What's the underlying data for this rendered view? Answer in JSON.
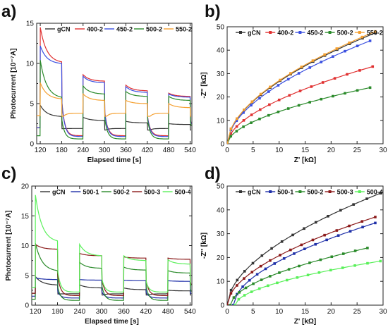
{
  "chart_data": [
    {
      "panel": "a)",
      "type": "line",
      "xlabel": "Elapsed time [s]",
      "ylabel": "Photocurrent [10⁻⁷A]",
      "xlim": [
        110,
        545
      ],
      "ylim": [
        0,
        15
      ],
      "xticks": [
        120,
        180,
        240,
        300,
        360,
        420,
        480,
        540
      ],
      "yticks": [
        0,
        5,
        10,
        15
      ],
      "minor_yticks": [
        2.5,
        7.5,
        12.5
      ],
      "legend": "top",
      "on_times": [
        120,
        240,
        360,
        480
      ],
      "off_times": [
        180,
        300,
        420,
        540
      ],
      "series": [
        {
          "name": "gCN",
          "color": "#333333",
          "dark": 1.9,
          "start": 2.0,
          "peaks": [
            4.8,
            3.3,
            2.8,
            2.5
          ],
          "ends": [
            3.4,
            2.9,
            2.6,
            2.4
          ]
        },
        {
          "name": "400-2",
          "color": "#e03030",
          "dark": 1.0,
          "start": 2.0,
          "peaks": [
            14.5,
            8.6,
            7.3,
            6.3
          ],
          "ends": [
            10.2,
            7.8,
            6.6,
            5.9
          ]
        },
        {
          "name": "450-2",
          "color": "#3a4fe0",
          "dark": 0.9,
          "start": 2.0,
          "peaks": [
            12.2,
            8.4,
            7.1,
            6.2
          ],
          "ends": [
            10.0,
            7.6,
            6.4,
            5.8
          ]
        },
        {
          "name": "500-2",
          "color": "#2a8a2a",
          "dark": 0.6,
          "start": 1.0,
          "peaks": [
            10.4,
            7.2,
            6.5,
            5.9
          ],
          "ends": [
            5.8,
            6.2,
            5.9,
            5.4
          ]
        },
        {
          "name": "550-2",
          "color": "#f5a030",
          "dark": 3.8,
          "start": 3.5,
          "peaks": [
            7.6,
            6.2,
            5.4,
            5.0
          ],
          "ends": [
            5.6,
            5.4,
            5.0,
            4.5
          ]
        }
      ]
    },
    {
      "panel": "b)",
      "type": "scatter",
      "xlabel": "Z' [kΩ]",
      "ylabel": "-Z'' [kΩ]",
      "xlim": [
        0,
        30
      ],
      "ylim": [
        0,
        50
      ],
      "xticks": [
        0,
        5,
        10,
        15,
        20,
        25,
        30
      ],
      "yticks": [
        0,
        10,
        20,
        30,
        40,
        50
      ],
      "legend": "top",
      "series": [
        {
          "name": "gCN",
          "color": "#333333",
          "marker": "square",
          "x0": 0,
          "x_last": 28.6,
          "y_last": 47.5
        },
        {
          "name": "400-2",
          "color": "#e03030",
          "marker": "square",
          "x0": 0,
          "x_last": 28.0,
          "y_last": 33.0
        },
        {
          "name": "450-2",
          "color": "#3a4fe0",
          "marker": "square",
          "x0": 0,
          "x_last": 27.5,
          "y_last": 44.0
        },
        {
          "name": "500-2",
          "color": "#2a8a2a",
          "marker": "square",
          "x0": 0,
          "x_last": 27.5,
          "y_last": 24.0
        },
        {
          "name": "550-2",
          "color": "#f5a030",
          "marker": "square",
          "x0": 0,
          "x_last": 28.5,
          "y_last": 48.0
        }
      ]
    },
    {
      "panel": "c)",
      "type": "line",
      "xlabel": "Elapsed time [s]",
      "ylabel": "Photocurrent [10⁻⁷A]",
      "xlim": [
        110,
        545
      ],
      "ylim": [
        0,
        20
      ],
      "xticks": [
        120,
        180,
        240,
        300,
        360,
        420,
        480,
        540
      ],
      "yticks": [
        0,
        5,
        10,
        15,
        20
      ],
      "minor_yticks": [
        2.5,
        7.5,
        12.5,
        17.5
      ],
      "legend": "top",
      "on_times": [
        120,
        240,
        360,
        480
      ],
      "off_times": [
        180,
        300,
        420,
        540
      ],
      "series": [
        {
          "name": "gCN",
          "color": "#333333",
          "dark": 1.9,
          "start": 2.0,
          "peaks": [
            4.8,
            3.4,
            2.9,
            2.5
          ],
          "ends": [
            3.4,
            2.9,
            2.6,
            2.4
          ]
        },
        {
          "name": "500-1",
          "color": "#1e2fa8",
          "dark": 1.2,
          "start": 1.5,
          "peaks": [
            4.6,
            4.3,
            4.2,
            4.1
          ],
          "ends": [
            4.3,
            4.2,
            4.1,
            4.0
          ]
        },
        {
          "name": "500-2",
          "color": "#2a8a2a",
          "dark": 0.8,
          "start": 1.0,
          "peaks": [
            10.4,
            7.2,
            6.4,
            5.8
          ],
          "ends": [
            5.8,
            6.2,
            5.9,
            5.4
          ]
        },
        {
          "name": "500-3",
          "color": "#8b1a1a",
          "dark": 1.6,
          "start": 2.0,
          "peaks": [
            10.2,
            8.7,
            8.1,
            7.9
          ],
          "ends": [
            9.4,
            8.3,
            7.9,
            7.7
          ]
        },
        {
          "name": "500-4",
          "color": "#5af05a",
          "dark": 2.2,
          "start": 3.0,
          "peaks": [
            18.5,
            10.2,
            8.3,
            7.6
          ],
          "ends": [
            10.8,
            8.3,
            7.5,
            6.9
          ]
        }
      ]
    },
    {
      "panel": "d)",
      "type": "scatter",
      "xlabel": "Z' [kΩ]",
      "ylabel": "-Z'' [kΩ]",
      "xlim": [
        0,
        30
      ],
      "ylim": [
        0,
        50
      ],
      "xticks": [
        0,
        5,
        10,
        15,
        20,
        25,
        30
      ],
      "yticks": [
        0,
        10,
        20,
        30,
        40,
        50
      ],
      "legend": "top",
      "series": [
        {
          "name": "gCN",
          "color": "#333333",
          "marker": "square",
          "x0": 0.0,
          "x_last": 29.5,
          "y_last": 47.0
        },
        {
          "name": "500-1",
          "color": "#1e2fa8",
          "marker": "square",
          "x0": 1.2,
          "x_last": 28.5,
          "y_last": 34.5
        },
        {
          "name": "500-2",
          "color": "#2a8a2a",
          "marker": "square",
          "x0": 0.6,
          "x_last": 27.0,
          "y_last": 24.0
        },
        {
          "name": "500-3",
          "color": "#8b1a1a",
          "marker": "square",
          "x0": 0.0,
          "x_last": 28.5,
          "y_last": 37.0
        },
        {
          "name": "500-4",
          "color": "#5af05a",
          "marker": "square",
          "x0": 1.5,
          "x_last": 29.5,
          "y_last": 18.5
        }
      ]
    }
  ]
}
